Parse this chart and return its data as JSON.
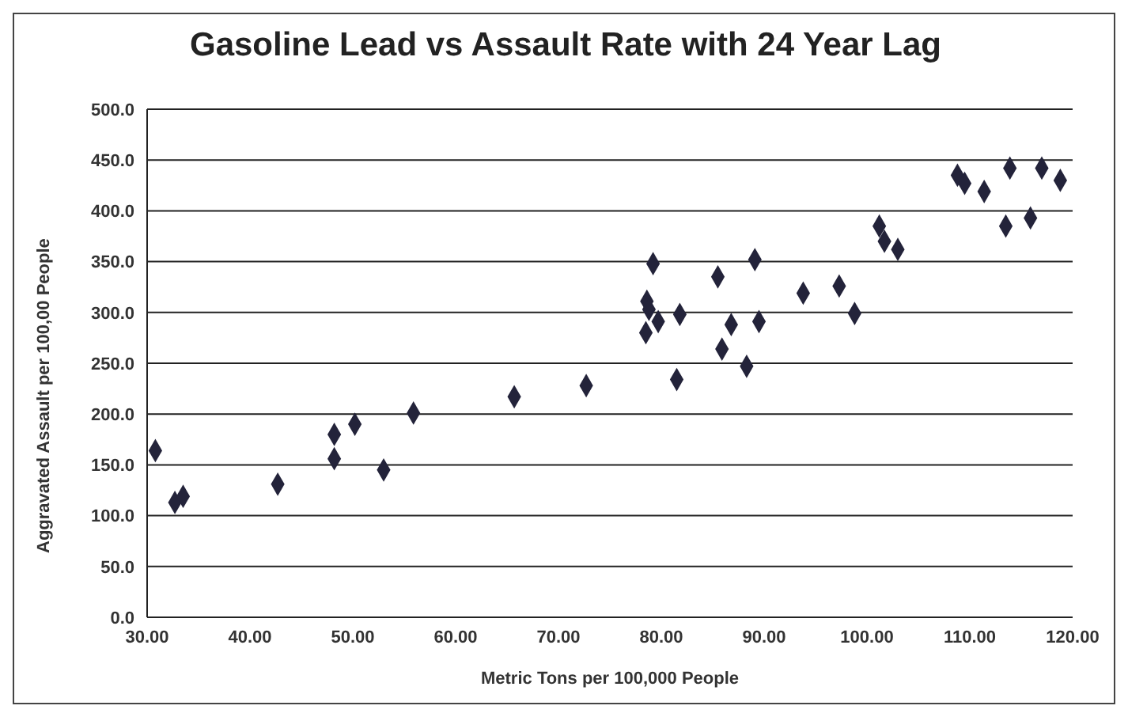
{
  "chart_data": {
    "type": "scatter",
    "title": "Gasoline Lead vs Assault Rate with 24 Year Lag",
    "xlabel": "Metric Tons per 100,000 People",
    "ylabel": "Aggravated Assault  per 100,00 People",
    "x": [
      30.8,
      32.7,
      33.5,
      42.7,
      48.2,
      48.2,
      50.2,
      53.0,
      55.9,
      65.7,
      72.7,
      79.2,
      78.6,
      78.8,
      78.5,
      79.7,
      81.8,
      81.5,
      85.5,
      85.9,
      86.8,
      89.1,
      88.3,
      89.5,
      93.8,
      97.3,
      98.8,
      101.2,
      101.7,
      103.0,
      108.8,
      109.5,
      111.4,
      113.5,
      113.9,
      115.9,
      117.0,
      118.8
    ],
    "series": [
      {
        "color": "#23233a",
        "values": [
          164,
          113,
          119,
          131,
          180,
          156,
          190,
          145,
          201,
          217,
          228,
          348,
          311,
          303,
          280,
          291,
          298,
          234,
          335,
          264,
          288,
          352,
          247,
          291,
          319,
          326,
          299,
          385,
          370,
          362,
          435,
          427,
          419,
          385,
          442,
          393,
          442,
          430
        ]
      }
    ],
    "xlim": [
      30,
      120
    ],
    "xticks": [
      {
        "value": 30,
        "label": "30.00"
      },
      {
        "value": 40,
        "label": "40.00"
      },
      {
        "value": 50,
        "label": "50.00"
      },
      {
        "value": 60,
        "label": "60.00"
      },
      {
        "value": 70,
        "label": "70.00"
      },
      {
        "value": 80,
        "label": "80.00"
      },
      {
        "value": 90,
        "label": "90.00"
      },
      {
        "value": 100,
        "label": "100.00"
      },
      {
        "value": 110,
        "label": "110.00"
      },
      {
        "value": 120,
        "label": "120.00"
      }
    ],
    "ylim": [
      0,
      500
    ],
    "yticks": [
      {
        "value": 0,
        "label": "0.0"
      },
      {
        "value": 50,
        "label": "50.0"
      },
      {
        "value": 100,
        "label": "100.0"
      },
      {
        "value": 150,
        "label": "150.0"
      },
      {
        "value": 200,
        "label": "200.0"
      },
      {
        "value": 250,
        "label": "250.0"
      },
      {
        "value": 300,
        "label": "300.0"
      },
      {
        "value": 350,
        "label": "350.0"
      },
      {
        "value": 400,
        "label": "400.0"
      },
      {
        "value": 450,
        "label": "450.0"
      },
      {
        "value": 500,
        "label": "500.0"
      }
    ],
    "grid": "y",
    "marker": "diamond",
    "legend": false
  }
}
